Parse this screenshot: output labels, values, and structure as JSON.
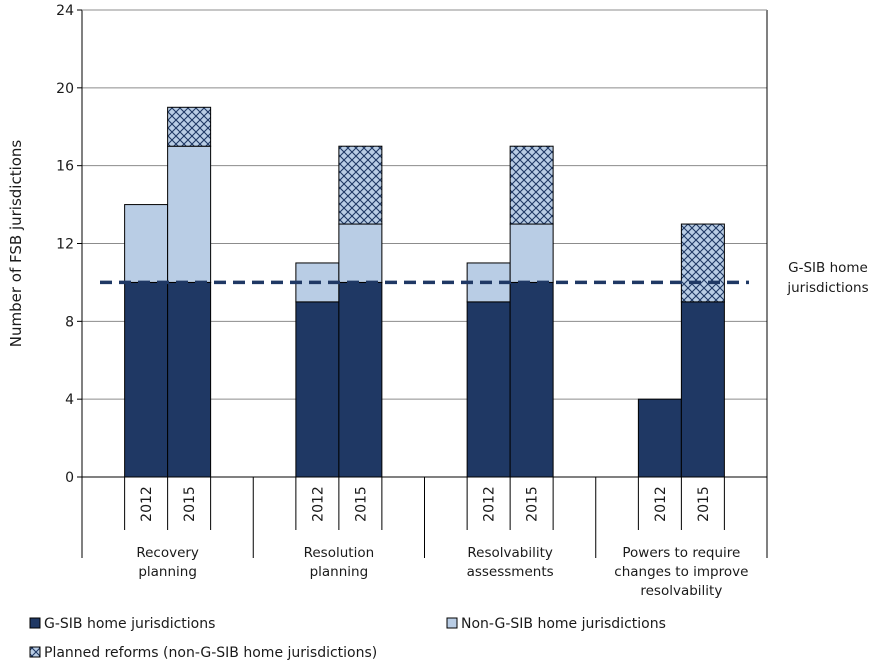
{
  "chart_data": {
    "type": "bar",
    "ylabel": "Number of FSB jurisdictions",
    "ylim": [
      0,
      24
    ],
    "yticks": [
      0,
      4,
      8,
      12,
      16,
      20,
      24
    ],
    "grid": true,
    "groups": [
      {
        "label_lines": [
          "Recovery",
          "planning"
        ],
        "years": [
          "2012",
          "2015"
        ]
      },
      {
        "label_lines": [
          "Resolution",
          "planning"
        ],
        "years": [
          "2012",
          "2015"
        ]
      },
      {
        "label_lines": [
          "Resolvability",
          "assessments"
        ],
        "years": [
          "2012",
          "2015"
        ]
      },
      {
        "label_lines": [
          "Powers to require",
          "changes to improve",
          "resolvability"
        ],
        "years": [
          "2012",
          "2015"
        ]
      }
    ],
    "series": [
      {
        "name": "G-SIB home jurisdictions",
        "color": "#1f3864",
        "pattern": "solid",
        "values": [
          [
            10,
            10
          ],
          [
            9,
            10
          ],
          [
            9,
            10
          ],
          [
            4,
            9
          ]
        ]
      },
      {
        "name": "Non-G-SIB home jurisdictions",
        "color": "#b9cde5",
        "pattern": "solid",
        "values": [
          [
            4,
            7
          ],
          [
            2,
            3
          ],
          [
            2,
            3
          ],
          [
            0,
            0
          ]
        ]
      },
      {
        "name": "Planned reforms (non-G-SIB home jurisdictions)",
        "color": "#b9cde5",
        "pattern": "crosshatch",
        "values": [
          [
            0,
            2
          ],
          [
            0,
            4
          ],
          [
            0,
            4
          ],
          [
            0,
            4
          ]
        ]
      }
    ],
    "reference_line": {
      "value": 10,
      "style": "dashed",
      "color": "#1f3864",
      "label_lines": [
        "G-SIB home",
        "jurisdictions"
      ]
    },
    "legend": {
      "placement": "bottom"
    }
  }
}
